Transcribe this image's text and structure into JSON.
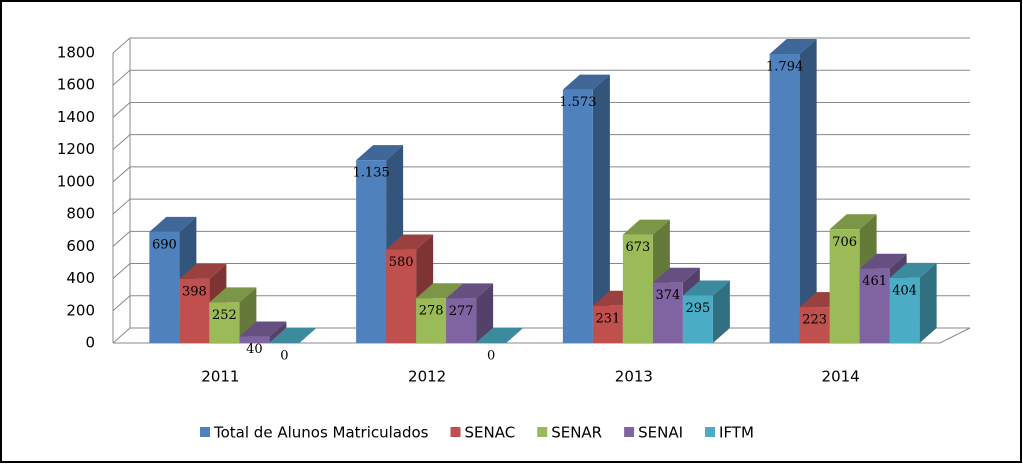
{
  "chart_data": {
    "type": "bar3d",
    "categories": [
      "2011",
      "2012",
      "2013",
      "2014"
    ],
    "series": [
      {
        "name": "Total de Alunos Matriculados",
        "color": "#4f81bd",
        "values": [
          690,
          1135,
          1573,
          1794
        ],
        "value_labels": [
          "690",
          "1.135",
          "1.573",
          "1.794"
        ]
      },
      {
        "name": "SENAC",
        "color": "#c0504d",
        "values": [
          398,
          580,
          231,
          223
        ]
      },
      {
        "name": "SENAR",
        "color": "#9bbb59",
        "values": [
          252,
          278,
          673,
          706
        ]
      },
      {
        "name": "SENAI",
        "color": "#8064a2",
        "values": [
          40,
          277,
          374,
          461
        ]
      },
      {
        "name": "IFTM",
        "color": "#4bacc6",
        "values": [
          0,
          0,
          295,
          404
        ]
      }
    ],
    "ylim": [
      0,
      1800
    ],
    "yticks": [
      0,
      200,
      400,
      600,
      800,
      1000,
      1200,
      1400,
      1600,
      1800
    ],
    "grid": true,
    "legend": "bottom"
  }
}
